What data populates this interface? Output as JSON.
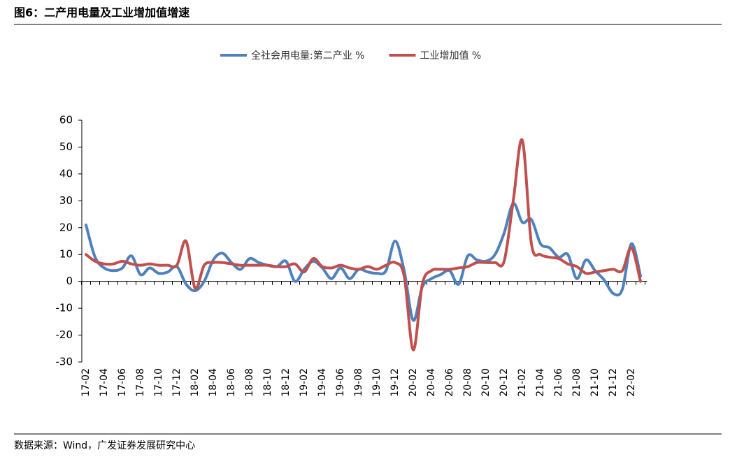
{
  "header": {
    "title": "图6：二产用电量及工业增加值增速"
  },
  "footer": {
    "source": "数据来源：Wind，广发证券发展研究中心"
  },
  "chart_data": {
    "type": "line",
    "categories": [
      "17-02",
      null,
      "17-04",
      null,
      "17-06",
      null,
      "17-08",
      null,
      "17-10",
      null,
      "17-12",
      null,
      "18-02",
      null,
      "18-04",
      null,
      "18-06",
      null,
      "18-08",
      null,
      "18-10",
      null,
      "18-12",
      null,
      "19-02",
      null,
      "19-04",
      null,
      "19-06",
      null,
      "19-08",
      null,
      "19-10",
      null,
      "19-12",
      null,
      "20-02",
      null,
      "20-04",
      null,
      "20-06",
      null,
      "20-08",
      null,
      "20-10",
      null,
      "20-12",
      null,
      "21-02",
      null,
      "21-04",
      null,
      "21-06",
      null,
      "21-08",
      null,
      "21-10",
      null,
      "21-12",
      null,
      "22-02",
      null
    ],
    "series": [
      {
        "name": "全社会用电量:第二产业 %",
        "color": "#4f81bd",
        "values": [
          21,
          9,
          5,
          4,
          5,
          9.5,
          2.5,
          5,
          3,
          3.5,
          5.5,
          -1,
          -3.5,
          0,
          8,
          10.5,
          7,
          4.5,
          8.5,
          7,
          6,
          5.5,
          7.5,
          0,
          4.5,
          7.5,
          5,
          1,
          5,
          1,
          4.5,
          3.5,
          3,
          4,
          15,
          4,
          -14.5,
          -2,
          1,
          2.5,
          4,
          -1,
          9.5,
          8,
          7.5,
          10,
          18,
          29,
          22,
          23,
          14,
          12.5,
          9,
          10,
          1,
          8,
          4,
          0.5,
          -4.5,
          -3,
          14,
          2
        ]
      },
      {
        "name": "工业增加值 %",
        "color": "#c0504d",
        "values": [
          10,
          7.5,
          6.5,
          6.5,
          7.5,
          6.5,
          6,
          6.5,
          6,
          6,
          6,
          15,
          -2.5,
          6,
          7,
          7,
          6.5,
          6,
          6,
          6,
          6,
          5.5,
          5.5,
          6.5,
          3.5,
          8.5,
          5.5,
          5,
          6,
          5,
          4.5,
          5.5,
          4.5,
          6,
          7,
          2,
          -25.5,
          -1,
          4,
          4.5,
          4.5,
          5,
          5.5,
          7,
          7,
          7,
          7.5,
          30,
          52.5,
          14,
          10,
          9,
          8.5,
          6.5,
          5.5,
          3,
          3.5,
          4,
          4.5,
          4,
          12.5,
          0
        ]
      }
    ],
    "ylim": [
      -30,
      60
    ],
    "yticks": [
      -30,
      -20,
      -10,
      0,
      10,
      20,
      30,
      40,
      50,
      60
    ]
  }
}
